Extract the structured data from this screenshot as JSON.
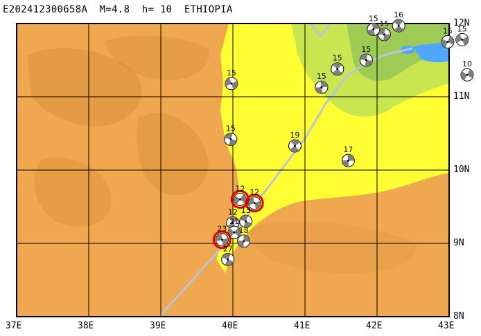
{
  "title": "E202412300658A  M=4.8  h= 10  ETHIOPIA",
  "x_ticks": [
    "37E",
    "38E",
    "39E",
    "40E",
    "41E",
    "42E",
    "43E"
  ],
  "y_ticks": [
    "12N",
    "11N",
    "10N",
    "9N",
    "8N"
  ],
  "colors": {
    "highland": "#f0a850",
    "highland_dark": "#d8903a",
    "lowland": "#ffff33",
    "lowland_green": "#c8e650",
    "depression": "#9ecb55",
    "lake": "#4fa7ff",
    "plate_boundary": "#b9c4d8",
    "grid": "#000000",
    "highlight": "#dd0000"
  },
  "events": [
    {
      "label": "15",
      "lon": 42.1,
      "lat": 11.85,
      "red": false
    },
    {
      "label": "16",
      "lon": 42.3,
      "lat": 11.97,
      "red": false
    },
    {
      "label": "15",
      "lon": 41.95,
      "lat": 11.92,
      "red": false
    },
    {
      "label": "15",
      "lon": 42.98,
      "lat": 11.75,
      "red": false
    },
    {
      "label": "15",
      "lon": 43.18,
      "lat": 11.78,
      "red": false
    },
    {
      "label": "15",
      "lon": 41.85,
      "lat": 11.5,
      "red": false
    },
    {
      "label": "15",
      "lon": 41.45,
      "lat": 11.38,
      "red": false
    },
    {
      "label": "15",
      "lon": 41.23,
      "lat": 11.13,
      "red": false
    },
    {
      "label": "10",
      "lon": 43.25,
      "lat": 11.3,
      "red": false
    },
    {
      "label": "15",
      "lon": 39.98,
      "lat": 11.18,
      "red": false
    },
    {
      "label": "15",
      "lon": 39.97,
      "lat": 10.42,
      "red": false
    },
    {
      "label": "19",
      "lon": 40.86,
      "lat": 10.33,
      "red": false
    },
    {
      "label": "17",
      "lon": 41.6,
      "lat": 10.13,
      "red": false
    },
    {
      "label": "12",
      "lon": 40.1,
      "lat": 9.6,
      "red": true
    },
    {
      "label": "12",
      "lon": 40.3,
      "lat": 9.55,
      "red": true
    },
    {
      "label": "13",
      "lon": 40.18,
      "lat": 9.3,
      "red": false
    },
    {
      "label": "12",
      "lon": 40.0,
      "lat": 9.28,
      "red": false
    },
    {
      "label": "18",
      "lon": 40.15,
      "lat": 9.03,
      "red": false
    },
    {
      "label": "21",
      "lon": 40.02,
      "lat": 9.15,
      "red": false
    },
    {
      "label": "23",
      "lon": 39.85,
      "lat": 9.05,
      "red": true
    },
    {
      "label": "27",
      "lon": 39.93,
      "lat": 8.78,
      "red": false
    }
  ]
}
